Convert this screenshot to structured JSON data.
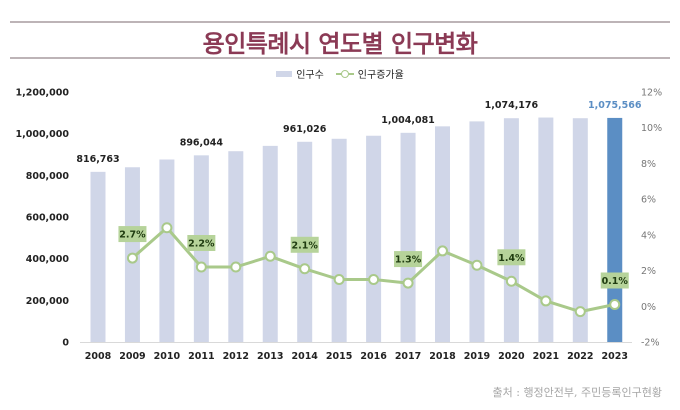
{
  "header": {
    "title": "용인특례시 연도별 인구변화"
  },
  "legend": {
    "bar_label": "인구수",
    "line_label": "인구증가율"
  },
  "source": "출처 : 행정안전부, 주민등록인구현황",
  "colors": {
    "title": "#8b3a55",
    "bar": "#d0d6e8",
    "bar_highlight": "#5b8ec4",
    "line": "#a9c98a",
    "label_box": "#b6d39a"
  },
  "chart_data": {
    "type": "bar",
    "title": "용인특례시 연도별 인구변화",
    "xlabel": "",
    "ylabel": "",
    "categories": [
      "2008",
      "2009",
      "2010",
      "2011",
      "2012",
      "2013",
      "2014",
      "2015",
      "2016",
      "2017",
      "2018",
      "2019",
      "2020",
      "2021",
      "2022",
      "2023"
    ],
    "series": [
      {
        "name": "인구수",
        "type": "bar",
        "axis": "left",
        "values": [
          816763,
          838800,
          876000,
          896044,
          915800,
          941400,
          961026,
          975400,
          990000,
          1004081,
          1035200,
          1059000,
          1074176,
          1077400,
          1074200,
          1075566
        ],
        "highlight_index": 15,
        "labels": [
          {
            "index": 0,
            "text": "816,763"
          },
          {
            "index": 3,
            "text": "896,044"
          },
          {
            "index": 6,
            "text": "961,026"
          },
          {
            "index": 9,
            "text": "1,004,081"
          },
          {
            "index": 12,
            "text": "1,074,176"
          },
          {
            "index": 15,
            "text": "1,075,566"
          }
        ]
      },
      {
        "name": "인구증가율",
        "type": "line",
        "axis": "right",
        "unit": "%",
        "values": [
          null,
          2.7,
          4.4,
          2.2,
          2.2,
          2.8,
          2.1,
          1.5,
          1.5,
          1.3,
          3.1,
          2.3,
          1.4,
          0.3,
          -0.3,
          0.1
        ],
        "labels": [
          {
            "index": 1,
            "text": "2.7%"
          },
          {
            "index": 3,
            "text": "2.2%"
          },
          {
            "index": 6,
            "text": "2.1%"
          },
          {
            "index": 9,
            "text": "1.3%"
          },
          {
            "index": 12,
            "text": "1.4%"
          },
          {
            "index": 15,
            "text": "0.1%"
          }
        ]
      }
    ],
    "y_left": {
      "range": [
        0,
        1200000
      ],
      "ticks": [
        0,
        200000,
        400000,
        600000,
        800000,
        1000000,
        1200000
      ],
      "tick_labels": [
        "0",
        "200,000",
        "400,000",
        "600,000",
        "800,000",
        "1,000,000",
        "1,200,000"
      ]
    },
    "y_right": {
      "range": [
        -2,
        12
      ],
      "ticks": [
        -2,
        0,
        2,
        4,
        6,
        8,
        10,
        12
      ],
      "tick_labels": [
        "-2%",
        "0%",
        "2%",
        "4%",
        "6%",
        "8%",
        "10%",
        "12%"
      ]
    },
    "grid": false,
    "legend_position": "top-center"
  }
}
